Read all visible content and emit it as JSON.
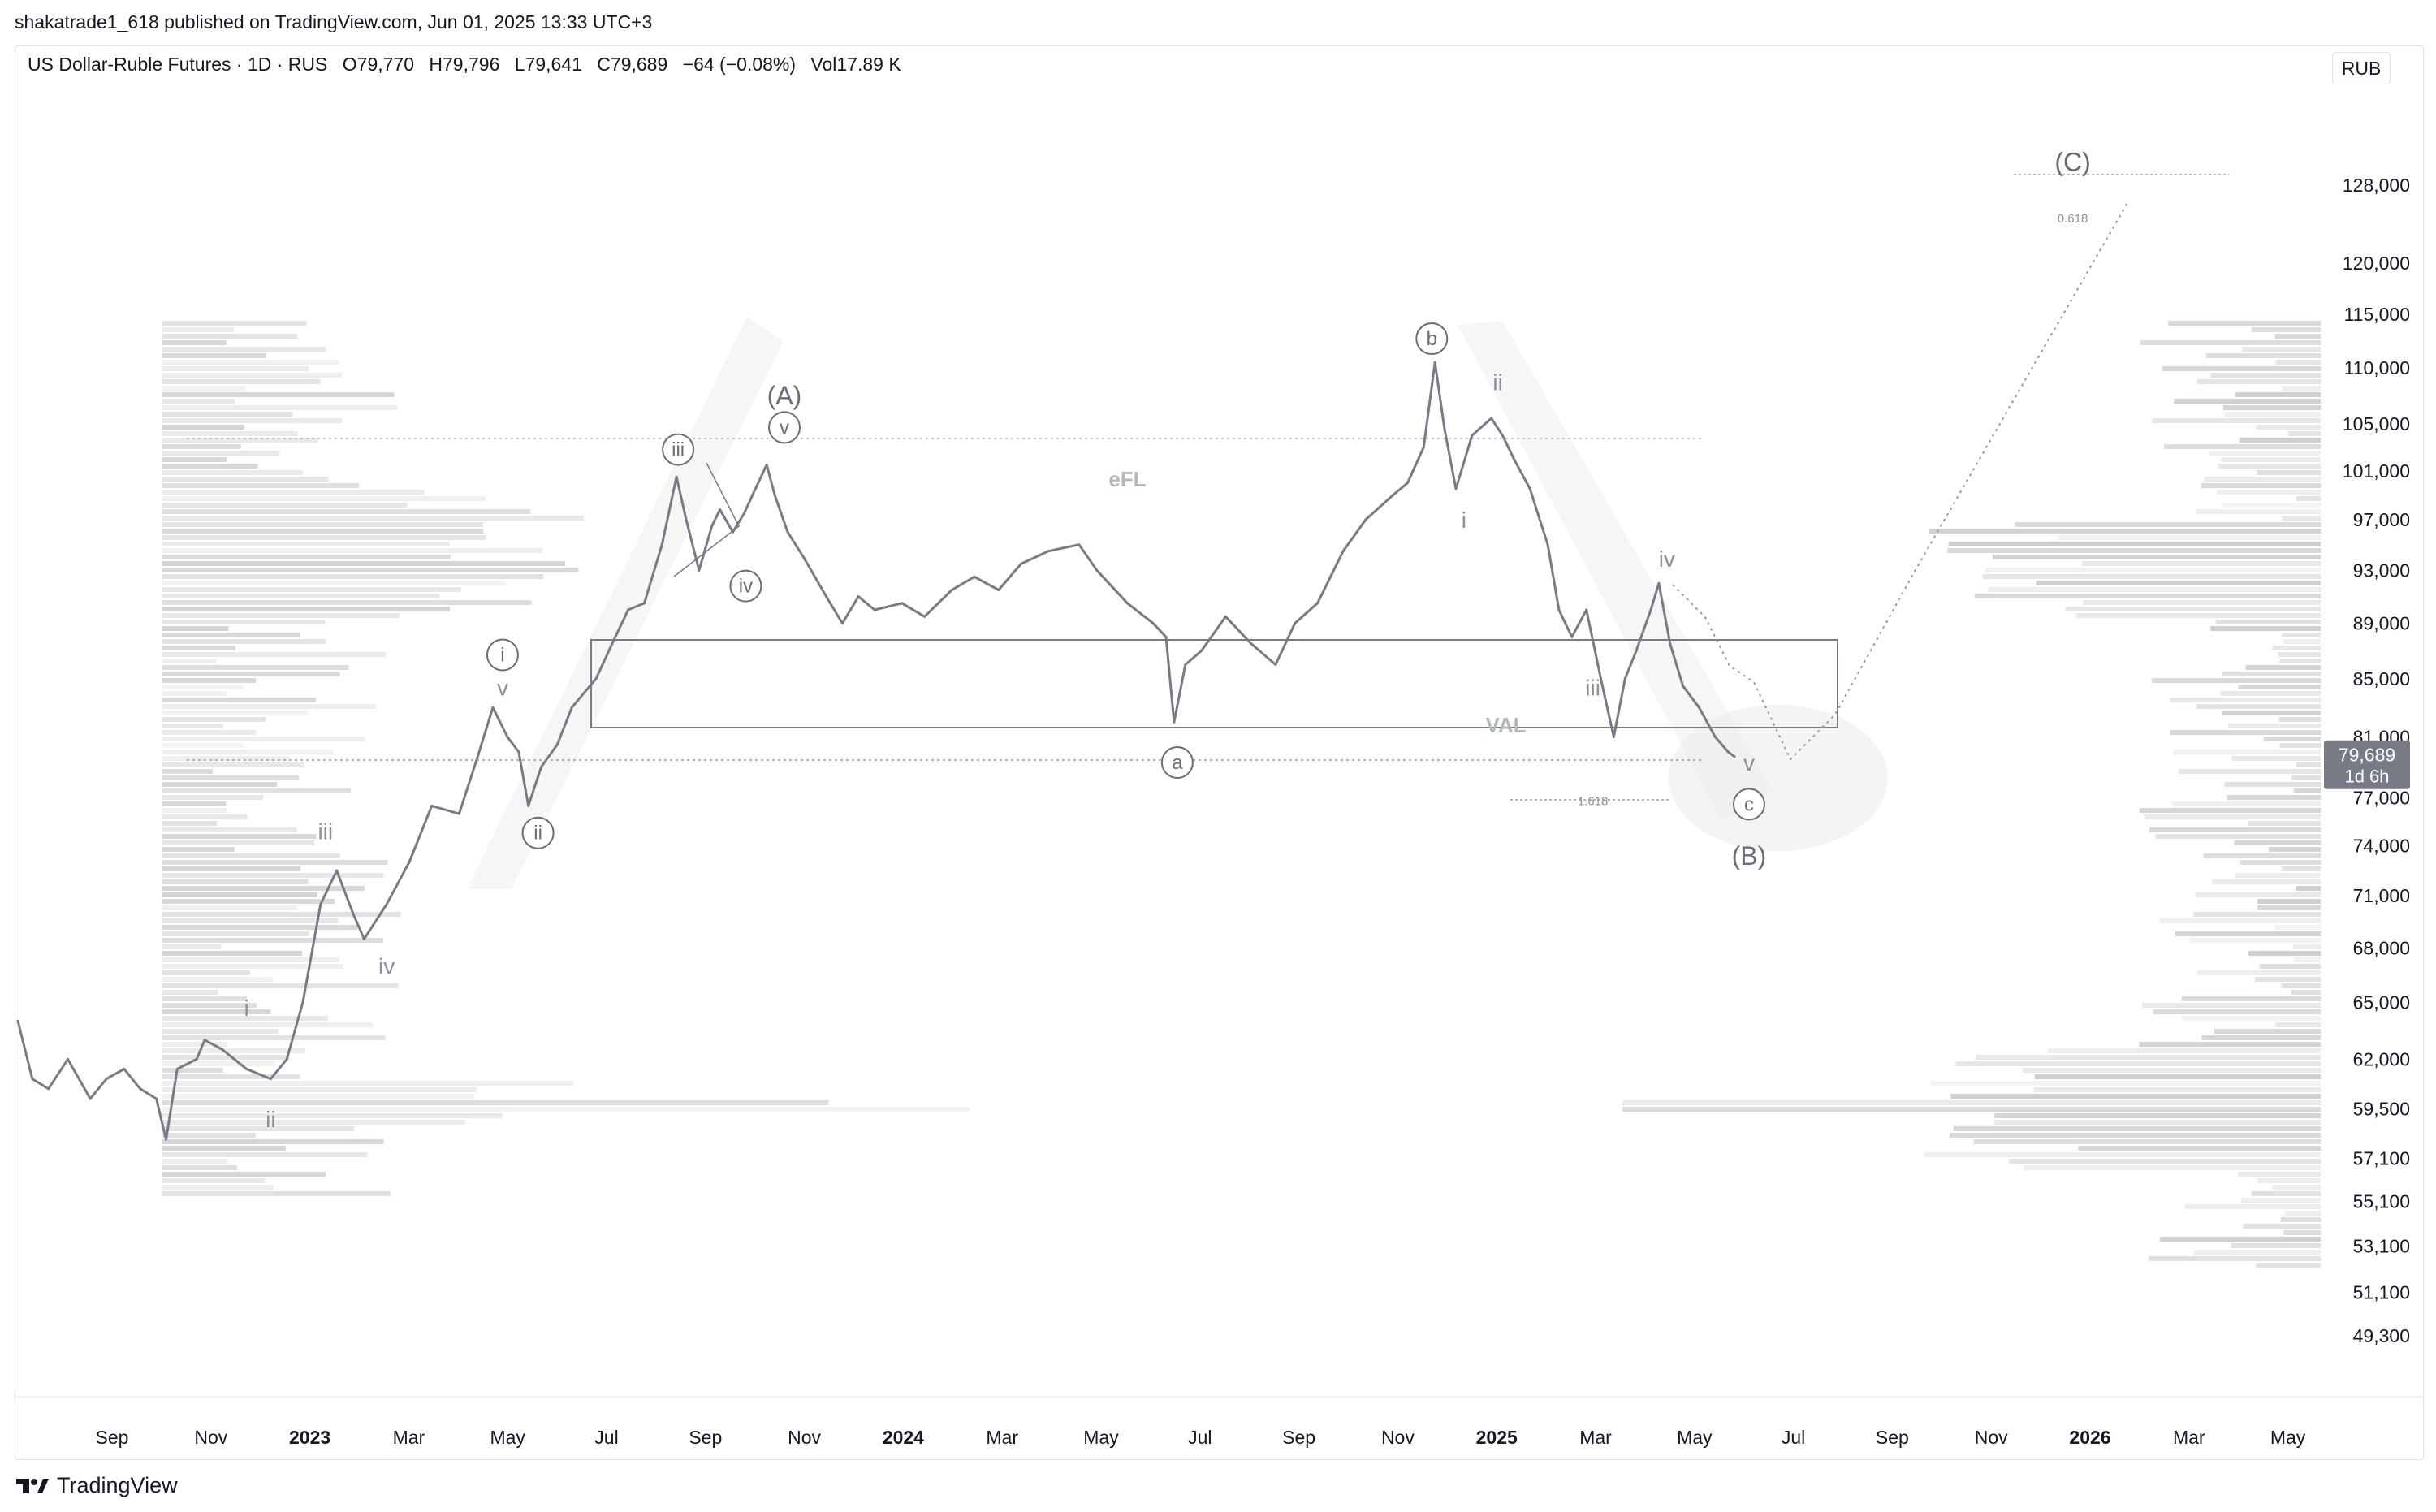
{
  "publish_line": "shakatrade1_618 published on TradingView.com, Jun 01, 2025 13:33 UTC+3",
  "header": {
    "symbol": "US Dollar-Ruble Futures · 1D · RUS",
    "open": "O79,770",
    "high": "H79,796",
    "low": "L79,641",
    "close": "C79,689",
    "change": "−64 (−0.08%)",
    "volume": "Vol17.89 K"
  },
  "currency_button": "RUB",
  "footer": {
    "brand": "TradingView",
    "logo_icon": "tradingview-logo-icon"
  },
  "colors": {
    "price_line": "#787b86",
    "label_bg": "#787b86",
    "text_dim": "#8c8f99",
    "label_text": "#ffffff"
  },
  "chart_data": {
    "type": "line",
    "title": "US Dollar-Ruble Futures · 1D · RUS",
    "x_tick_labels": [
      "Sep",
      "Nov",
      "2023",
      "Mar",
      "May",
      "Jul",
      "Sep",
      "Nov",
      "2024",
      "Mar",
      "May",
      "Jul",
      "Sep",
      "Nov",
      "2025",
      "Mar",
      "May",
      "Jul",
      "Sep",
      "Nov",
      "2026",
      "Mar",
      "May"
    ],
    "x_tick_bold": [
      "2023",
      "2024",
      "2025",
      "2026"
    ],
    "y_tick_labels": [
      128000,
      120000,
      115000,
      110000,
      105000,
      101000,
      97000,
      93000,
      89000,
      85000,
      81000,
      77000,
      74000,
      71000,
      68000,
      65000,
      62000,
      59500,
      57100,
      55100,
      53100,
      51100,
      49300
    ],
    "y_scale": "log",
    "ylim": [
      47500,
      134000
    ],
    "current_price": {
      "value": "79,689",
      "countdown": "1d 6h"
    },
    "series": [
      {
        "values": [
          [
            "2022-07-01",
            64000
          ],
          [
            "2022-07-10",
            61000
          ],
          [
            "2022-07-20",
            60500
          ],
          [
            "2022-08-01",
            62000
          ],
          [
            "2022-08-15",
            60000
          ],
          [
            "2022-08-25",
            61000
          ],
          [
            "2022-09-05",
            61500
          ],
          [
            "2022-09-15",
            60500
          ],
          [
            "2022-09-25",
            60000
          ],
          [
            "2022-10-01",
            58000
          ],
          [
            "2022-10-08",
            61500
          ],
          [
            "2022-10-20",
            62000
          ],
          [
            "2022-10-25",
            63000
          ],
          [
            "2022-11-05",
            62500
          ],
          [
            "2022-11-20",
            61500
          ],
          [
            "2022-12-05",
            61000
          ],
          [
            "2022-12-15",
            62000
          ],
          [
            "2022-12-25",
            65000
          ],
          [
            "2023-01-05",
            70500
          ],
          [
            "2023-01-15",
            72500
          ],
          [
            "2023-01-25",
            70000
          ],
          [
            "2023-02-01",
            68500
          ],
          [
            "2023-02-15",
            70500
          ],
          [
            "2023-03-01",
            73000
          ],
          [
            "2023-03-15",
            76500
          ],
          [
            "2023-04-01",
            76000
          ],
          [
            "2023-04-12",
            79500
          ],
          [
            "2023-04-22",
            83000
          ],
          [
            "2023-05-01",
            81000
          ],
          [
            "2023-05-08",
            80000
          ],
          [
            "2023-05-14",
            76500
          ],
          [
            "2023-05-22",
            79000
          ],
          [
            "2023-06-01",
            80500
          ],
          [
            "2023-06-10",
            83000
          ],
          [
            "2023-06-25",
            85000
          ],
          [
            "2023-07-05",
            87500
          ],
          [
            "2023-07-15",
            90000
          ],
          [
            "2023-07-25",
            90500
          ],
          [
            "2023-08-05",
            95000
          ],
          [
            "2023-08-14",
            100500
          ],
          [
            "2023-08-20",
            97000
          ],
          [
            "2023-08-28",
            93000
          ],
          [
            "2023-09-05",
            96500
          ],
          [
            "2023-09-10",
            97800
          ],
          [
            "2023-09-18",
            96000
          ],
          [
            "2023-09-25",
            97500
          ],
          [
            "2023-10-02",
            99500
          ],
          [
            "2023-10-09",
            101500
          ],
          [
            "2023-10-14",
            99000
          ],
          [
            "2023-10-22",
            96000
          ],
          [
            "2023-11-01",
            94000
          ],
          [
            "2023-11-15",
            91000
          ],
          [
            "2023-11-25",
            89000
          ],
          [
            "2023-12-05",
            91000
          ],
          [
            "2023-12-15",
            90000
          ],
          [
            "2024-01-01",
            90500
          ],
          [
            "2024-01-15",
            89500
          ],
          [
            "2024-02-01",
            91500
          ],
          [
            "2024-02-15",
            92500
          ],
          [
            "2024-03-01",
            91500
          ],
          [
            "2024-03-15",
            93500
          ],
          [
            "2024-04-01",
            94500
          ],
          [
            "2024-04-20",
            95000
          ],
          [
            "2024-05-01",
            93000
          ],
          [
            "2024-05-20",
            90500
          ],
          [
            "2024-06-05",
            89000
          ],
          [
            "2024-06-13",
            88000
          ],
          [
            "2024-06-18",
            82000
          ],
          [
            "2024-06-25",
            86000
          ],
          [
            "2024-07-05",
            87000
          ],
          [
            "2024-07-20",
            89500
          ],
          [
            "2024-08-05",
            87500
          ],
          [
            "2024-08-20",
            86000
          ],
          [
            "2024-09-01",
            89000
          ],
          [
            "2024-09-15",
            90500
          ],
          [
            "2024-10-01",
            94500
          ],
          [
            "2024-10-15",
            97000
          ],
          [
            "2024-11-01",
            99000
          ],
          [
            "2024-11-10",
            100000
          ],
          [
            "2024-11-20",
            103000
          ],
          [
            "2024-11-27",
            110500
          ],
          [
            "2024-12-03",
            104500
          ],
          [
            "2024-12-10",
            99500
          ],
          [
            "2024-12-20",
            104000
          ],
          [
            "2025-01-01",
            105500
          ],
          [
            "2025-01-08",
            104000
          ],
          [
            "2025-01-15",
            102000
          ],
          [
            "2025-01-25",
            99500
          ],
          [
            "2025-02-05",
            95000
          ],
          [
            "2025-02-12",
            90000
          ],
          [
            "2025-02-20",
            88000
          ],
          [
            "2025-03-01",
            90000
          ],
          [
            "2025-03-10",
            85000
          ],
          [
            "2025-03-18",
            81000
          ],
          [
            "2025-03-25",
            85000
          ],
          [
            "2025-04-01",
            87000
          ],
          [
            "2025-04-10",
            90000
          ],
          [
            "2025-04-15",
            92000
          ],
          [
            "2025-04-22",
            87500
          ],
          [
            "2025-04-30",
            84500
          ],
          [
            "2025-05-10",
            83000
          ],
          [
            "2025-05-20",
            81000
          ],
          [
            "2025-05-28",
            80000
          ],
          [
            "2025-06-01",
            79689
          ]
        ]
      }
    ],
    "annotations": [
      {
        "text": "(A)",
        "date": "2023-10-20",
        "price": 107500,
        "style": "paren"
      },
      {
        "text": "v",
        "date": "2023-10-20",
        "price": 104700,
        "style": "circle"
      },
      {
        "text": "iii",
        "date": "2023-08-15",
        "price": 102800,
        "style": "circle"
      },
      {
        "text": "iv",
        "date": "2023-09-26",
        "price": 91800,
        "style": "circle"
      },
      {
        "text": "i",
        "date": "2023-04-28",
        "price": 86700,
        "style": "circle"
      },
      {
        "text": "ii",
        "date": "2023-05-20",
        "price": 74800,
        "style": "circle"
      },
      {
        "text": "v",
        "date": "2023-04-28",
        "price": 84400,
        "style": "plain"
      },
      {
        "text": "iii",
        "date": "2023-01-08",
        "price": 74900,
        "style": "plain"
      },
      {
        "text": "iv",
        "date": "2023-02-15",
        "price": 67000,
        "style": "plain"
      },
      {
        "text": "i",
        "date": "2022-11-20",
        "price": 64700,
        "style": "plain"
      },
      {
        "text": "ii",
        "date": "2022-12-05",
        "price": 59000,
        "style": "plain"
      },
      {
        "text": "eFL",
        "date": "2024-05-20",
        "price": 100300,
        "style": "label"
      },
      {
        "text": "VAL",
        "date": "2025-01-10",
        "price": 81800,
        "style": "label"
      },
      {
        "text": "a",
        "date": "2024-06-20",
        "price": 79300,
        "style": "circle"
      },
      {
        "text": "b",
        "date": "2024-11-25",
        "price": 112700,
        "style": "circle"
      },
      {
        "text": "ii",
        "date": "2025-01-05",
        "price": 108700,
        "style": "plain"
      },
      {
        "text": "i",
        "date": "2024-12-15",
        "price": 97000,
        "style": "plain"
      },
      {
        "text": "iv",
        "date": "2025-04-20",
        "price": 93900,
        "style": "plain"
      },
      {
        "text": "iii",
        "date": "2025-03-05",
        "price": 84400,
        "style": "plain"
      },
      {
        "text": "v",
        "date": "2025-06-10",
        "price": 79300,
        "style": "plain"
      },
      {
        "text": "c",
        "date": "2025-06-10",
        "price": 76600,
        "style": "circle"
      },
      {
        "text": "(B)",
        "date": "2025-06-10",
        "price": 73400,
        "style": "paren"
      },
      {
        "text": "(C)",
        "date": "2025-12-28",
        "price": 130500,
        "style": "paren"
      },
      {
        "text": "1.618",
        "date": "2025-03-05",
        "price": 76800,
        "style": "fib"
      },
      {
        "text": "0.618",
        "date": "2025-12-28",
        "price": 124500,
        "style": "fib"
      }
    ]
  }
}
